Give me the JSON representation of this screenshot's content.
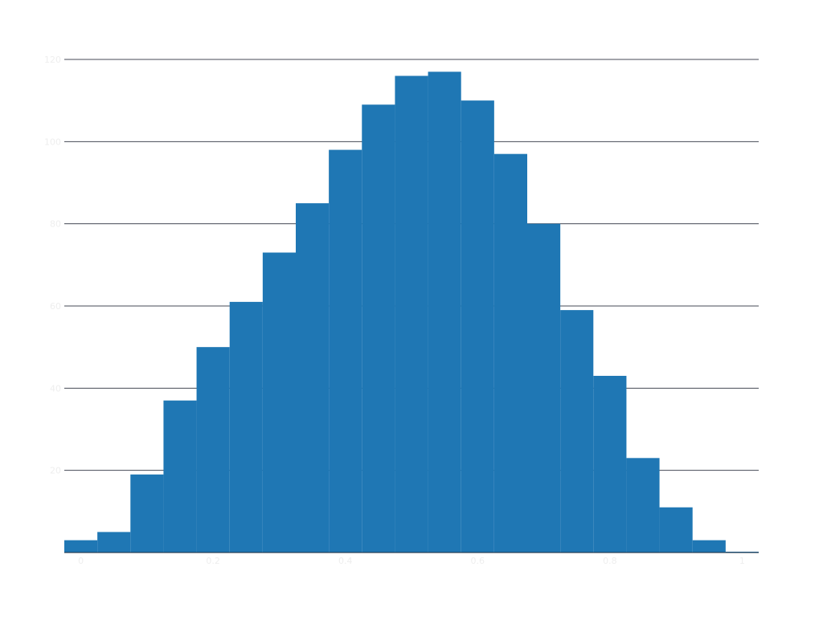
{
  "chart_data": {
    "type": "bar",
    "histogram": true,
    "bin_edges": [
      -0.025,
      0.025,
      0.075,
      0.125,
      0.175,
      0.225,
      0.275,
      0.325,
      0.375,
      0.425,
      0.475,
      0.525,
      0.575,
      0.625,
      0.675,
      0.725,
      0.775,
      0.825,
      0.875,
      0.925,
      0.975,
      1.025
    ],
    "values": [
      3,
      5,
      19,
      37,
      50,
      61,
      73,
      85,
      98,
      109,
      116,
      117,
      110,
      97,
      80,
      59,
      43,
      23,
      11,
      3,
      0.2
    ],
    "title": "",
    "xlabel": "",
    "ylabel": "",
    "xlim": [
      -0.025,
      1.025
    ],
    "ylim": [
      0,
      120
    ],
    "x_ticks": [
      {
        "value": 0,
        "label": "0"
      },
      {
        "value": 0.2,
        "label": "0.2"
      },
      {
        "value": 0.4,
        "label": "0.4"
      },
      {
        "value": 0.6,
        "label": "0.6"
      },
      {
        "value": 0.8,
        "label": "0.8"
      },
      {
        "value": 1,
        "label": "1"
      }
    ],
    "y_ticks": [
      {
        "value": 20,
        "label": "20"
      },
      {
        "value": 40,
        "label": "40"
      },
      {
        "value": 60,
        "label": "60"
      },
      {
        "value": 80,
        "label": "80"
      },
      {
        "value": 100,
        "label": "100"
      },
      {
        "value": 120,
        "label": "120"
      }
    ],
    "grid": "horizontal",
    "colors": {
      "bar": "#1f77b4",
      "grid": "#444a55",
      "tick_label": "#eeeeee"
    }
  }
}
